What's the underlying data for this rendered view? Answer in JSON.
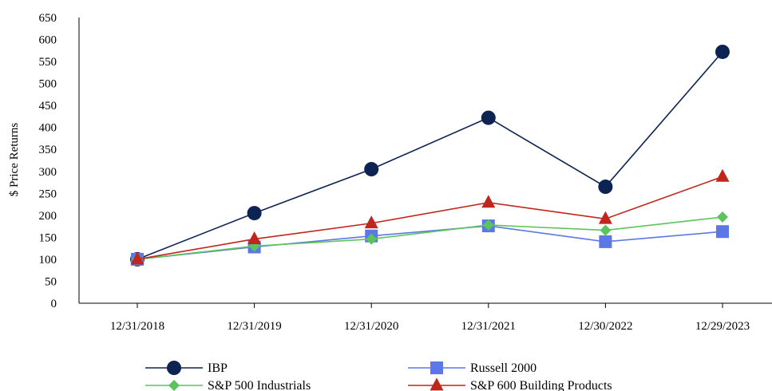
{
  "chart_data": {
    "type": "line",
    "categories": [
      "12/31/2018",
      "12/31/2019",
      "12/31/2020",
      "12/31/2021",
      "12/30/2022",
      "12/29/2023"
    ],
    "ylabel": "$ Price Returns",
    "ylim": [
      0,
      650
    ],
    "yticks": [
      0,
      50,
      100,
      150,
      200,
      250,
      300,
      350,
      400,
      450,
      500,
      550,
      600,
      650
    ],
    "grid": false,
    "legend_position": "bottom",
    "series": [
      {
        "name": "IBP",
        "marker": "circle",
        "color": "#0d2453",
        "values": [
          100,
          205,
          305,
          422,
          265,
          572
        ]
      },
      {
        "name": "Russell 2000",
        "marker": "square",
        "color": "#5b78e6",
        "values": [
          100,
          128,
          153,
          176,
          140,
          163
        ]
      },
      {
        "name": "S&P 500 Industrials",
        "marker": "diamond",
        "color": "#5cc45c",
        "values": [
          100,
          130,
          146,
          178,
          166,
          196
        ]
      },
      {
        "name": "S&P 600 Building Products",
        "marker": "triangle",
        "color": "#c0261b",
        "values": [
          100,
          146,
          182,
          229,
          192,
          288
        ]
      }
    ]
  }
}
